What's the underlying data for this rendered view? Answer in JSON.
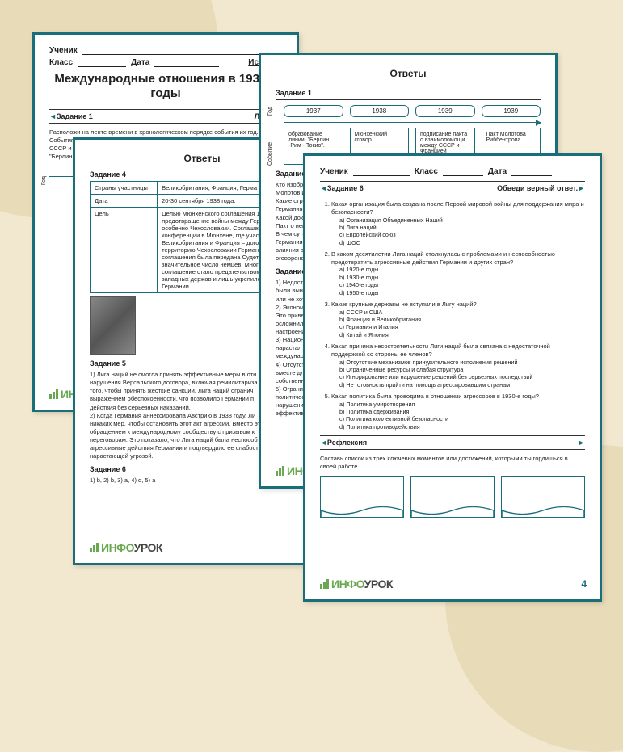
{
  "colors": {
    "accent": "#1a6e7a",
    "bg": "#f2e8cf",
    "logo_green": "#6aa84f",
    "logo_dark": "#444444"
  },
  "logo": {
    "prefix": "ИНФО",
    "suffix": "УРОК"
  },
  "page1": {
    "student_label": "Ученик",
    "class_label": "Класс",
    "date_label": "Дата",
    "subject": "История",
    "title": "Международные отношения в 1930-е годы",
    "task1_label": "Задание 1",
    "task1_right": "Лента в",
    "instr": "Расположи на ленте времени в хронологическом порядке события их год.\nСобытия:\nСССР и Ф\n\"Берлин -",
    "year_side": "Год"
  },
  "page2": {
    "answers": "Ответы",
    "task4_label": "Задание 4",
    "table": {
      "r1c1": "Страны участницы",
      "r1c2": "Великобритания, Франция,  Герма",
      "r2c1": "Дата",
      "r2c2": "20-30  сентября 1938 года.",
      "r3c1": "Цель",
      "r3c2": "Целью Мюнхенского соглашения 19\nпредотвращение войны между Герм\nособенно Чехословакии. Соглашен\nконференции в Мюнхене, где участ\nВеликобритания и Франция – догов\nтерриторию Чехословакии Германи\nсоглашения была передана Судетск\nзначительное число немцев. Многи\nсоглашение стало предательством Ч\nзападных держав и лишь укрепило\nГермании."
    },
    "task5_label": "Задание 5",
    "task5_text": "1) Лига наций не смогла принять эффективные меры в отн\nнарушения Версальского договора, включая ремилитариза\nтого, чтобы принять жесткие санкции, Лига наций огранич\nвыражением обеспокоенности, что позволило Германии п\nдействия без серьезных наказаний.\n2) Когда Германия аннексировала Австрию в 1938 году, Ли\nникаких мер, чтобы остановить этот акт агрессии. Вместо эт\nобращением к международному сообществу с призывом к\nпереговорам. Это показало, что Лига наций была неспособ\nагрессивные действия Германии и подтвердило ее слабост\nнарастающей угрозой.",
    "task6_label": "Задание 6",
    "task6_text": "1) b, 2) b, 3) a, 4) d, 5) a"
  },
  "page3": {
    "answers": "Ответы",
    "task1_label": "Задание 1",
    "year_side": "Год",
    "event_side": "Событие",
    "years": [
      "1937",
      "1938",
      "1939",
      "1939"
    ],
    "events": [
      "образование линии: \"Берлин -Рим - Токио\".",
      "Мюнхенский сговор",
      "подписание пакта о взаимопомощи между СССР и Францией",
      "Пакт Молотова Риббентропа"
    ],
    "task2_label": "Задание 2",
    "task2_text": "Кто изображен на фотографии?\nМолотов и И. Риббе\nКакие страны предс\nГермания и СССР.\nКакой документ под\nПакт о ненападении\nВ чем суть этого до\nГермания и СССР д\nвлияния в Восточно\nоговорено разделен",
    "task3_label": "Задание 3",
    "task3_text": "1) Недостаточное вь\nбыли вынуждены пр\nили не хотели выпо\n2) Экономические пр\nЭто привело к росту\nосложнило выполне\nнастроения.\n3) Национализм и ре\nнарастал национали\nмеждународных дог\n4) Отсутствие единст\nвместе для поддерж\nсобственные интере\n5) Ограниченные воз\nполитической и воен\nнарушениям междун\nэффективно реагиро"
  },
  "page4": {
    "student_label": "Ученик",
    "class_label": "Класс",
    "date_label": "Дата",
    "task6_label": "Задание 6",
    "task6_right": "Обведи верный ответ.",
    "quiz": [
      {
        "q": "Какая организация была создана после Первой мировой войны для поддержания мира и безопасности?",
        "opts": [
          "a) Организация Объединенных Наций",
          "b) Лига наций",
          "c) Европейский союз",
          "d) ШОС"
        ]
      },
      {
        "q": "В каком десятилетии Лига наций столкнулась с проблемами и неспособностью предотвратить агрессивные действия Германии и других стран?",
        "opts": [
          "a) 1920-е годы",
          "b) 1930-е годы",
          "c) 1940-е годы",
          "d) 1950-е годы"
        ]
      },
      {
        "q": "Какие крупные державы не вступили в Лигу наций?",
        "opts": [
          "a) СССР и США",
          "b) Франция и Великобритания",
          "c) Германия и Италия",
          "d) Китай и Япония"
        ]
      },
      {
        "q": "Какая причина несостоятельности Лиги наций была связана с недостаточной поддержкой со стороны ее членов?",
        "opts": [
          "a) Отсутствие механизмов принудительного исполнения решений",
          "b) Ограниченные ресурсы и слабая структура",
          "c) Игнорирование или нарушение решений без серьезных последствий",
          "d) Не готовность прийти на помощь агрессировавшим странам"
        ]
      },
      {
        "q": "Какая политика была проводима в отношении агрессоров в 1930-е годы?",
        "opts": [
          "a) Политика умиротворения",
          "b) Политика сдерживания",
          "c) Политика коллективной безопасности",
          "d) Политика противодействия"
        ]
      }
    ],
    "reflex_label": "Рефлексия",
    "reflex_text": "Составь список из трех ключевых моментов или достижений, которыми ты гордишься в своей работе.",
    "pagenum": "4"
  }
}
